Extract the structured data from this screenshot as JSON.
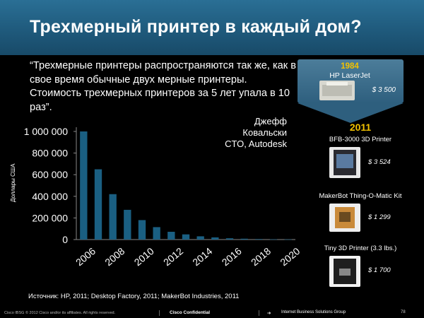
{
  "slide": {
    "title": "Трехмерный принтер в каждый дом?",
    "quote": "“Трехмерные принтеры распространяются так же, как в свое время обычные двух мерные принтеры. Стоимость трехмерных принтеров за 5 лет упала в 10 раз”.",
    "author_name": "Джефф Ковальски",
    "author_role": "CTO, Autodesk",
    "source": "Источник: HP, 2011; Desktop Factory, 2011; MakerBot Industries, 2011"
  },
  "sidebar": {
    "year_old": "1984",
    "old_printer": "HP LaserJet",
    "old_price": "$ 3 500",
    "year_new": "2011",
    "printers": [
      {
        "name": "BFB-3000 3D Printer",
        "price": "$ 3 524"
      },
      {
        "name": "MakerBot Thing-O-Matic Kit",
        "price": "$ 1 299"
      },
      {
        "name": "Tiny 3D Printer (3.3 lbs.)",
        "price": "$ 1 700"
      }
    ]
  },
  "footer": {
    "copyright": "Cisco IBSG © 2012 Cisco and/or its affiliates. All rights reserved.",
    "confidential": "Cisco Confidential",
    "arrow": "➔",
    "group": "Internet Business Solutions Group",
    "page": "78"
  },
  "colors": {
    "bar": "#1a5f82",
    "accent": "#f2c200",
    "title_bg": "#1f5a7c"
  },
  "chart_data": {
    "type": "bar",
    "ylabel": "Доллары США",
    "ylim": [
      0,
      1000000
    ],
    "yticks": [
      0,
      200000,
      400000,
      600000,
      800000,
      1000000
    ],
    "ytick_labels": [
      "0",
      "200 000",
      "400 000",
      "600 000",
      "800 000",
      "1 000 000"
    ],
    "xtick_labels": [
      "2006",
      "2008",
      "2010",
      "2012",
      "2014",
      "2016",
      "2018",
      "2020"
    ],
    "categories": [
      "2006",
      "2007",
      "2008",
      "2009",
      "2010",
      "2011",
      "2012",
      "2013",
      "2014",
      "2015",
      "2016",
      "2017",
      "2018",
      "2019",
      "2020"
    ],
    "values": [
      1000000,
      650000,
      420000,
      275000,
      180000,
      115000,
      72000,
      48000,
      30000,
      20000,
      12000,
      8000,
      5000,
      3000,
      2000
    ]
  }
}
